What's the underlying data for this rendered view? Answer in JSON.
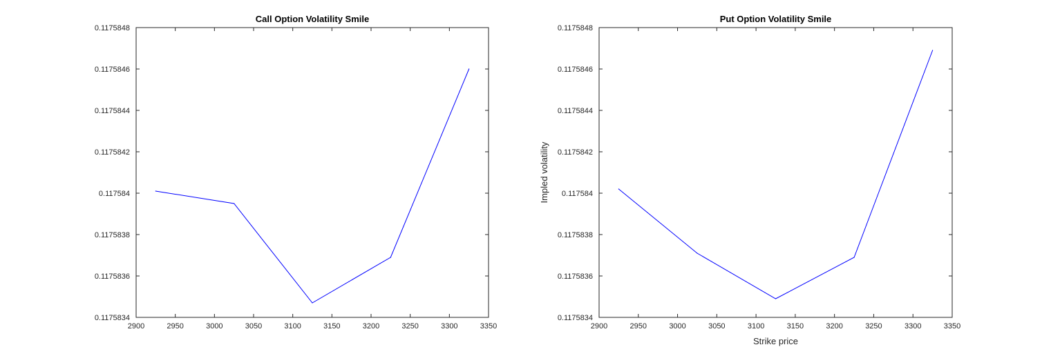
{
  "chart_data": [
    {
      "type": "line",
      "title": "Call Option Volatility Smile",
      "xlabel": "",
      "ylabel": "",
      "xlim": [
        2900,
        3350
      ],
      "ylim": [
        0.1175834,
        0.1175848
      ],
      "xticks": [
        "2900",
        "2950",
        "3000",
        "3050",
        "3100",
        "3150",
        "3200",
        "3250",
        "3300",
        "3350"
      ],
      "yticks": [
        "0.1175834",
        "0.1175836",
        "0.1175838",
        "0.117584",
        "0.1175842",
        "0.1175844",
        "0.1175846",
        "0.1175848"
      ],
      "grid": false,
      "series": [
        {
          "color": "#0000ff",
          "x": [
            2925,
            3025,
            3125,
            3225,
            3325
          ],
          "y": [
            0.11758401,
            0.11758395,
            0.11758347,
            0.11758369,
            0.1175846
          ]
        }
      ]
    },
    {
      "type": "line",
      "title": "Put Option Volatility Smile",
      "xlabel": "Strike price",
      "ylabel": "Impled volatility",
      "xlim": [
        2900,
        3350
      ],
      "ylim": [
        0.1175834,
        0.1175848
      ],
      "xticks": [
        "2900",
        "2950",
        "3000",
        "3050",
        "3100",
        "3150",
        "3200",
        "3250",
        "3300",
        "3350"
      ],
      "yticks": [
        "0.1175834",
        "0.1175836",
        "0.1175838",
        "0.117584",
        "0.1175842",
        "0.1175844",
        "0.1175846",
        "0.1175848"
      ],
      "grid": false,
      "series": [
        {
          "color": "#0000ff",
          "x": [
            2925,
            3025,
            3125,
            3225,
            3325
          ],
          "y": [
            0.11758402,
            0.11758371,
            0.11758349,
            0.11758369,
            0.11758469
          ]
        }
      ]
    }
  ]
}
